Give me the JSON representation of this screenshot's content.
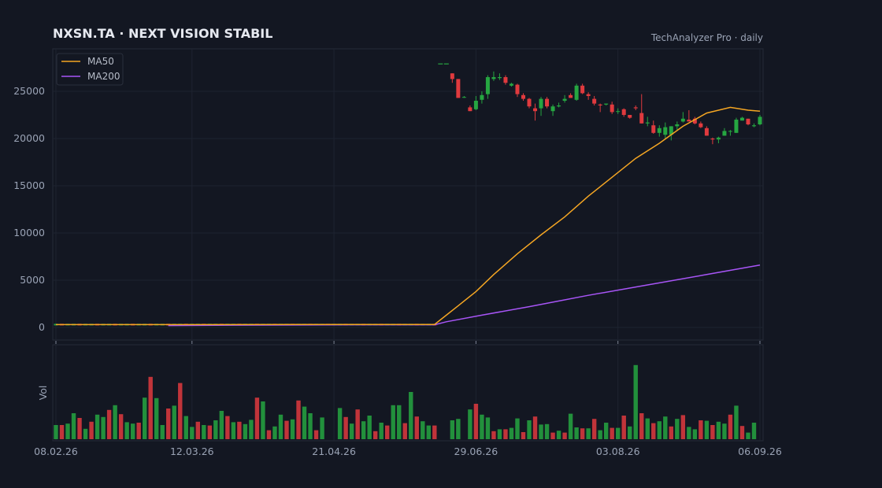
{
  "header": {
    "title": "NXSN.TA  ·  NEXT VISION STABIL",
    "source": "TechAnalyzer Pro · daily"
  },
  "colors": {
    "background": "#131722",
    "panel_border": "#262b38",
    "grid": "#1e2330",
    "text": "#9aa3b5",
    "up": "#26a641",
    "down": "#e03a3e",
    "ma50": "#f5a623",
    "ma200": "#a855f7"
  },
  "chart_data": {
    "type": "candlestick",
    "title": "NXSN.TA  ·  NEXT VISION STABIL",
    "interval": "daily",
    "x_ticks": [
      "08.02.26",
      "12.03.26",
      "21.04.26",
      "29.06.26",
      "03.08.26",
      "06.09.26"
    ],
    "x_tick_bar_index": [
      0,
      23,
      47,
      71,
      95,
      119
    ],
    "y_ticks": [
      0,
      5000,
      10000,
      15000,
      20000,
      25000
    ],
    "ylim": [
      -1500,
      29500
    ],
    "volume_label": "Vol",
    "grid": true,
    "legend_position": "top-left",
    "legend": [
      "MA50",
      "MA200"
    ],
    "bar_count": 120,
    "segments": [
      {
        "name": "pre_split_flat",
        "from": 0,
        "to": 64,
        "price": 300,
        "volume": 0.32
      },
      {
        "name": "early_marks",
        "from": 65,
        "to": 66,
        "price": 27900,
        "volume": 0.0
      }
    ],
    "ohlc_visible": [
      [
        67,
        26900,
        26900,
        25900,
        26300
      ],
      [
        68,
        26300,
        26300,
        24300,
        24300
      ],
      [
        69,
        24400,
        24500,
        24300,
        24400
      ],
      [
        70,
        23300,
        23500,
        22900,
        22900
      ],
      [
        71,
        23100,
        24500,
        23000,
        24000
      ],
      [
        72,
        24100,
        25000,
        23700,
        24600
      ],
      [
        73,
        24700,
        26700,
        24200,
        26500
      ],
      [
        74,
        26300,
        27100,
        26100,
        26500
      ],
      [
        75,
        26400,
        26900,
        26200,
        26500
      ],
      [
        76,
        26500,
        26700,
        25700,
        25900
      ],
      [
        77,
        25600,
        25900,
        25500,
        25800
      ],
      [
        78,
        25700,
        25800,
        24400,
        24700
      ],
      [
        79,
        24600,
        24800,
        24000,
        24200
      ],
      [
        80,
        24200,
        24300,
        23200,
        23400
      ],
      [
        81,
        23200,
        23700,
        21900,
        22900
      ],
      [
        82,
        23200,
        24400,
        22400,
        24200
      ],
      [
        83,
        24200,
        24400,
        23200,
        23400
      ],
      [
        84,
        22900,
        23600,
        22400,
        23400
      ],
      [
        85,
        23400,
        23800,
        23300,
        23500
      ],
      [
        86,
        24000,
        24600,
        23800,
        24200
      ],
      [
        87,
        24600,
        24800,
        24300,
        24300
      ],
      [
        88,
        24100,
        25800,
        24000,
        25600
      ],
      [
        89,
        25600,
        25800,
        24700,
        24800
      ],
      [
        90,
        24700,
        24900,
        24100,
        24500
      ],
      [
        91,
        24200,
        24500,
        23500,
        23700
      ],
      [
        92,
        23600,
        23700,
        22800,
        23500
      ],
      [
        93,
        23600,
        23700,
        23500,
        23700
      ],
      [
        94,
        23600,
        23900,
        22600,
        22800
      ],
      [
        95,
        22900,
        23200,
        22600,
        22900
      ],
      [
        96,
        23100,
        23200,
        22300,
        22500
      ],
      [
        97,
        22500,
        22500,
        22100,
        22200
      ],
      [
        98,
        23300,
        23500,
        23000,
        23200
      ],
      [
        99,
        22700,
        24700,
        21600,
        21600
      ],
      [
        100,
        21600,
        22300,
        21300,
        21700
      ],
      [
        101,
        21400,
        21900,
        20500,
        20600
      ],
      [
        102,
        20600,
        21400,
        20200,
        21100
      ],
      [
        103,
        20400,
        21700,
        19900,
        21200
      ],
      [
        104,
        20400,
        21300,
        19800,
        21300
      ],
      [
        105,
        21300,
        21800,
        20900,
        21500
      ],
      [
        106,
        21800,
        22800,
        21700,
        22100
      ],
      [
        107,
        22000,
        23000,
        21800,
        21800
      ],
      [
        108,
        22100,
        22300,
        21500,
        21600
      ],
      [
        109,
        21600,
        21800,
        21100,
        21200
      ],
      [
        110,
        21100,
        21300,
        20300,
        20300
      ],
      [
        111,
        20000,
        20100,
        19400,
        19900
      ],
      [
        112,
        19900,
        20200,
        19500,
        20100
      ],
      [
        113,
        20300,
        21100,
        20300,
        20800
      ],
      [
        114,
        20800,
        20900,
        20300,
        20800
      ],
      [
        115,
        20600,
        22200,
        20600,
        22000
      ],
      [
        116,
        21900,
        22300,
        21900,
        22200
      ],
      [
        117,
        22100,
        22100,
        21400,
        21500
      ],
      [
        118,
        21300,
        21600,
        21200,
        21400
      ],
      [
        119,
        21500,
        22500,
        21400,
        22300
      ]
    ],
    "volume_relative": [
      0.3,
      0.3,
      0.33,
      0.55,
      0.45,
      0.22,
      0.37,
      0.52,
      0.47,
      0.62,
      0.72,
      0.53,
      0.36,
      0.33,
      0.35,
      0.88,
      1.32,
      0.87,
      0.3,
      0.65,
      0.71,
      1.19,
      0.49,
      0.26,
      0.37,
      0.3,
      0.29,
      0.4,
      0.6,
      0.49,
      0.36,
      0.37,
      0.32,
      0.41,
      0.88,
      0.8,
      0.19,
      0.27,
      0.52,
      0.39,
      0.42,
      0.82,
      0.69,
      0.55,
      0.19,
      0.46,
      0.0,
      0.0,
      0.66,
      0.47,
      0.33,
      0.63,
      0.38,
      0.5,
      0.17,
      0.35,
      0.29,
      0.72,
      0.72,
      0.34,
      1.0,
      0.48,
      0.38,
      0.29,
      0.29,
      0.0,
      0.0,
      0.4,
      0.43,
      0.0,
      0.63,
      0.75,
      0.52,
      0.46,
      0.17,
      0.21,
      0.21,
      0.24,
      0.44,
      0.15,
      0.4,
      0.48,
      0.31,
      0.32,
      0.14,
      0.18,
      0.14,
      0.54,
      0.25,
      0.23,
      0.23,
      0.43,
      0.19,
      0.35,
      0.24,
      0.24,
      0.5,
      0.27,
      1.57,
      0.55,
      0.44,
      0.34,
      0.38,
      0.48,
      0.27,
      0.43,
      0.51,
      0.26,
      0.21,
      0.4,
      0.39,
      0.3,
      0.37,
      0.33,
      0.52,
      0.71,
      0.28,
      0.14,
      0.35,
      0.0
    ],
    "ma50": {
      "name": "MA50",
      "x": [
        0,
        64,
        66,
        68,
        71,
        74,
        78,
        82,
        86,
        90,
        94,
        98,
        102,
        106,
        110,
        114,
        117,
        119
      ],
      "y": [
        300,
        320,
        1300,
        2300,
        3800,
        5600,
        7800,
        9800,
        11700,
        13900,
        15900,
        17900,
        19500,
        21300,
        22700,
        23300,
        23000,
        22900
      ]
    },
    "ma200": {
      "name": "MA200",
      "x": [
        19,
        30,
        50,
        64,
        66,
        72,
        80,
        90,
        100,
        110,
        119
      ],
      "y": [
        200,
        240,
        280,
        280,
        600,
        1300,
        2200,
        3400,
        4500,
        5600,
        6600
      ]
    }
  }
}
